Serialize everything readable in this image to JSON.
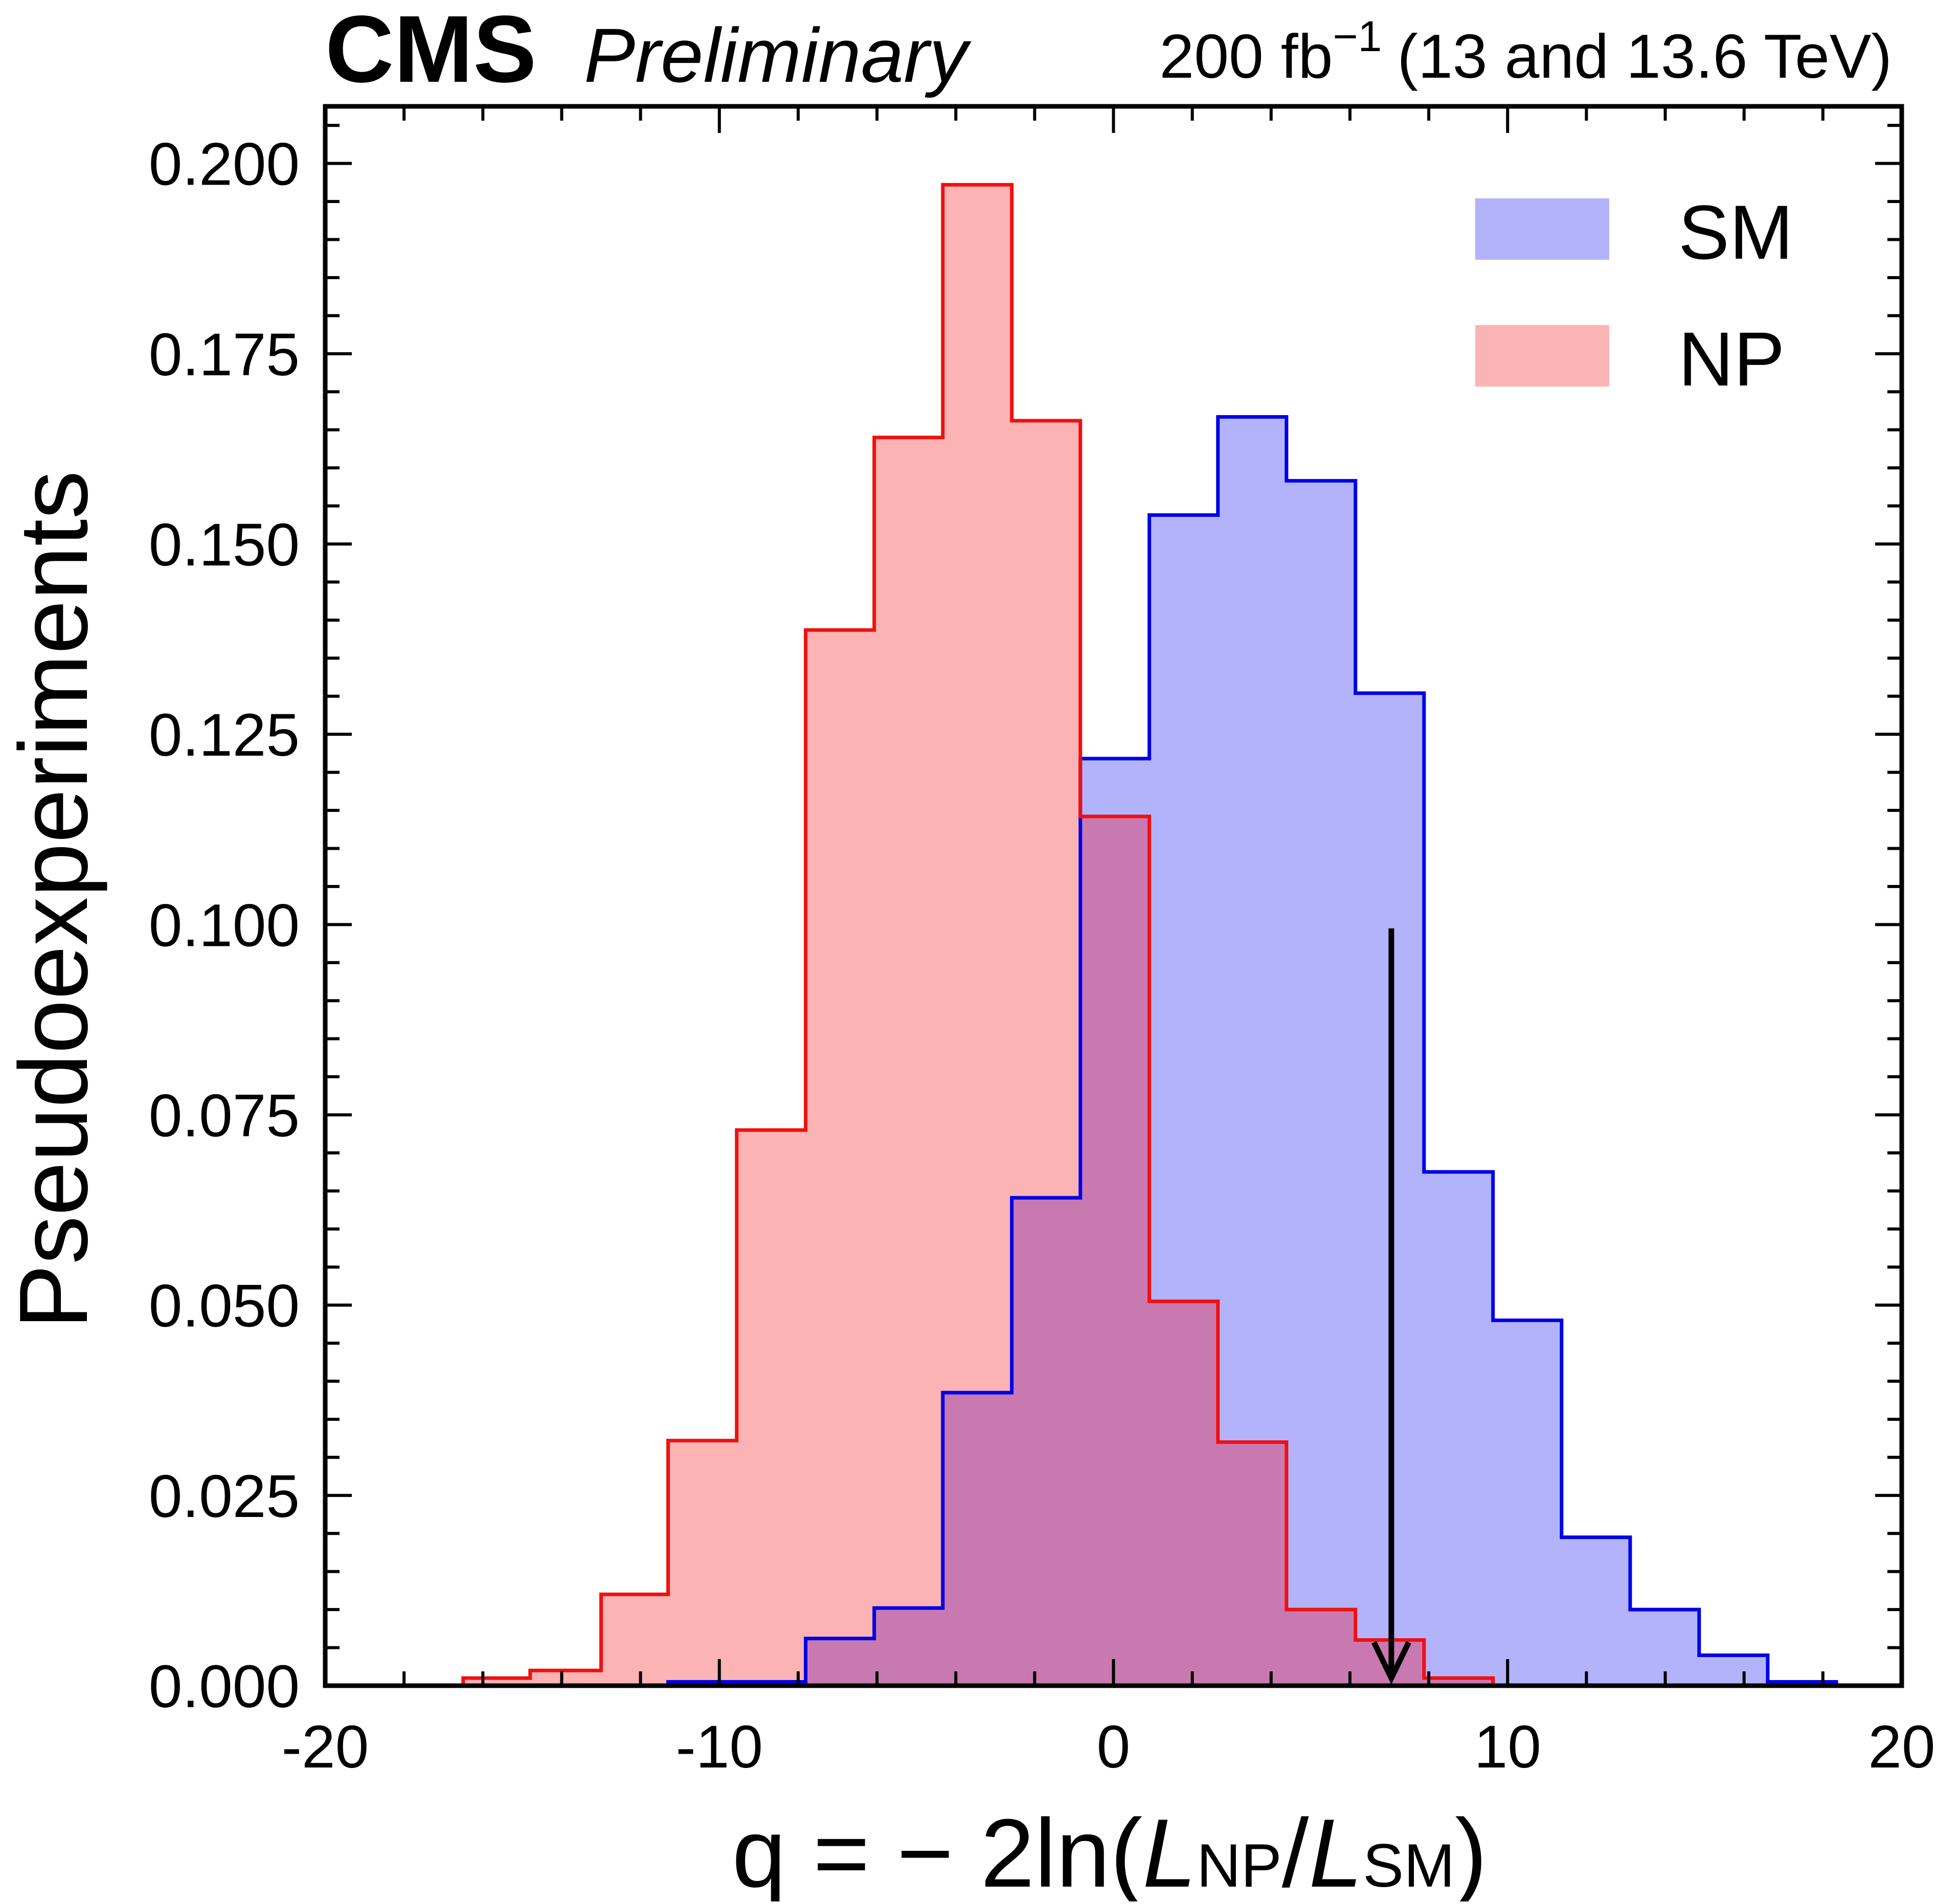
{
  "header": {
    "experiment": "CMS",
    "status": "Preliminary",
    "lumi_value": "200 fb",
    "lumi_exponent": "−1",
    "lumi_energy": "(13 and 13.6 TeV)"
  },
  "axes": {
    "ylabel": "Pseudoexperiments",
    "xlabel_prefix": "q = − 2ln(",
    "xlabel_L1": "L",
    "xlabel_sub1": "NP",
    "xlabel_slash": "/",
    "xlabel_L2": "L",
    "xlabel_sub2": "SM",
    "xlabel_suffix": ")"
  },
  "legend": {
    "sm_label": "SM",
    "np_label": "NP"
  },
  "colors": {
    "sm_fill": "#b3b3fb",
    "sm_line": "#0000e6",
    "np_fill": "#fbb3b3",
    "np_line": "#f01010",
    "overlap_fill": "#c87ab0",
    "axis": "#000000",
    "arrow": "#000000"
  },
  "chart_data": {
    "type": "histogram",
    "title": "",
    "xlabel": "q = −2ln(L_NP/L_SM)",
    "ylabel": "Pseudoexperiments",
    "xlim": [
      -20,
      20
    ],
    "ylim": [
      0,
      0.2075
    ],
    "x_ticks": [
      -20,
      -10,
      0,
      10,
      20
    ],
    "x_tick_labels": [
      "-20",
      "-10",
      "0",
      "10",
      "20"
    ],
    "y_ticks": [
      0.0,
      0.025,
      0.05,
      0.075,
      0.1,
      0.125,
      0.15,
      0.175,
      0.2
    ],
    "y_tick_labels": [
      "0.000",
      "0.025",
      "0.050",
      "0.075",
      "0.100",
      "0.125",
      "0.150",
      "0.175",
      "0.200"
    ],
    "legend_position": "top-right",
    "series": [
      {
        "name": "SM",
        "bin_edges": [
          -11.3,
          -9.56,
          -7.81,
          -6.07,
          -4.33,
          -2.58,
          -0.84,
          0.91,
          2.65,
          4.39,
          6.14,
          7.88,
          9.63,
          11.37,
          13.11,
          14.86,
          16.6,
          18.34
        ],
        "values": [
          0.0005,
          0.0005,
          0.0062,
          0.0102,
          0.0385,
          0.0641,
          0.1218,
          0.1538,
          0.1667,
          0.1583,
          0.1304,
          0.0675,
          0.048,
          0.0195,
          0.01,
          0.004,
          0.0005
        ]
      },
      {
        "name": "NP",
        "bin_edges": [
          -16.5,
          -14.8,
          -13.0,
          -11.3,
          -9.56,
          -7.81,
          -6.07,
          -4.33,
          -2.58,
          -0.84,
          0.91,
          2.65,
          4.39,
          6.14,
          7.88,
          9.63
        ],
        "values": [
          0.001,
          0.002,
          0.012,
          0.0322,
          0.073,
          0.1387,
          0.164,
          0.1972,
          0.1662,
          0.1142,
          0.0505,
          0.032,
          0.01,
          0.006,
          0.001
        ]
      }
    ],
    "annotations": [
      {
        "type": "arrow",
        "x": 7.05,
        "y_start": 0.0995,
        "y_end": 0.001,
        "meaning": "observed value"
      }
    ]
  }
}
